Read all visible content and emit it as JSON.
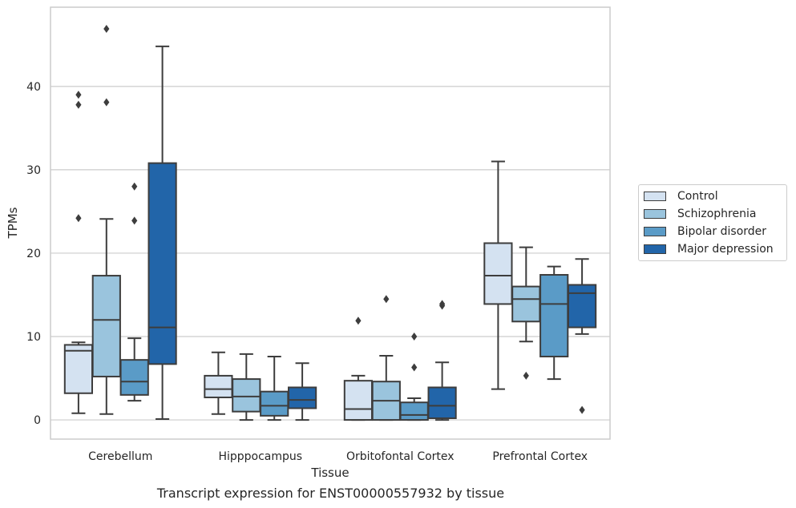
{
  "chart_data": {
    "type": "boxplot",
    "caption": "Transcript expression for ENST00000557932 by tissue",
    "xlabel": "Tissue",
    "ylabel": "TPMs",
    "ylim": [
      -2.3,
      49.5
    ],
    "yticks": [
      0,
      10,
      20,
      30,
      40
    ],
    "grid": "horizontal",
    "legend_position": "right",
    "categories": [
      "Cerebellum",
      "Hipppocampus",
      "Orbitofontal Cortex",
      "Prefrontal Cortex"
    ],
    "series": [
      {
        "name": "Control",
        "color": "#d4e2f1",
        "boxes": [
          {
            "whislo": 0.8,
            "q1": 3.2,
            "med": 8.3,
            "q3": 9.0,
            "whishi": 9.3,
            "fliers": [
              24.2,
              37.8,
              39.0
            ]
          },
          {
            "whislo": 0.7,
            "q1": 2.7,
            "med": 3.7,
            "q3": 5.3,
            "whishi": 8.1,
            "fliers": []
          },
          {
            "whislo": 0.0,
            "q1": 0.0,
            "med": 1.3,
            "q3": 4.7,
            "whishi": 5.3,
            "fliers": [
              11.9
            ]
          },
          {
            "whislo": 3.7,
            "q1": 13.9,
            "med": 17.3,
            "q3": 21.2,
            "whishi": 31.0,
            "fliers": []
          }
        ]
      },
      {
        "name": "Schizophrenia",
        "color": "#9ac4dd",
        "boxes": [
          {
            "whislo": 0.7,
            "q1": 5.2,
            "med": 12.0,
            "q3": 17.3,
            "whishi": 24.1,
            "fliers": [
              38.1,
              46.9
            ]
          },
          {
            "whislo": 0.0,
            "q1": 1.0,
            "med": 2.8,
            "q3": 4.9,
            "whishi": 7.9,
            "fliers": []
          },
          {
            "whislo": 0.0,
            "q1": 0.0,
            "med": 2.3,
            "q3": 4.6,
            "whishi": 7.7,
            "fliers": [
              14.5
            ]
          },
          {
            "whislo": 9.4,
            "q1": 11.8,
            "med": 14.5,
            "q3": 16.0,
            "whishi": 20.7,
            "fliers": [
              5.3
            ]
          }
        ]
      },
      {
        "name": "Bipolar disorder",
        "color": "#5a9bc7",
        "boxes": [
          {
            "whislo": 2.3,
            "q1": 3.0,
            "med": 4.6,
            "q3": 7.2,
            "whishi": 9.8,
            "fliers": [
              23.9,
              28.0
            ]
          },
          {
            "whislo": 0.0,
            "q1": 0.5,
            "med": 1.7,
            "q3": 3.4,
            "whishi": 7.6,
            "fliers": []
          },
          {
            "whislo": 0.0,
            "q1": 0.0,
            "med": 0.6,
            "q3": 2.1,
            "whishi": 2.6,
            "fliers": [
              6.3,
              10.0
            ]
          },
          {
            "whislo": 4.9,
            "q1": 7.6,
            "med": 13.9,
            "q3": 17.4,
            "whishi": 18.4,
            "fliers": []
          }
        ]
      },
      {
        "name": "Major depression",
        "color": "#2265a9",
        "boxes": [
          {
            "whislo": 0.1,
            "q1": 6.7,
            "med": 11.1,
            "q3": 30.8,
            "whishi": 44.8,
            "fliers": []
          },
          {
            "whislo": 0.0,
            "q1": 1.4,
            "med": 2.4,
            "q3": 3.9,
            "whishi": 6.8,
            "fliers": []
          },
          {
            "whislo": 0.0,
            "q1": 0.2,
            "med": 1.7,
            "q3": 3.9,
            "whishi": 6.9,
            "fliers": [
              13.7,
              13.9
            ]
          },
          {
            "whislo": 10.3,
            "q1": 11.1,
            "med": 15.2,
            "q3": 16.2,
            "whishi": 19.3,
            "fliers": [
              1.2
            ]
          }
        ]
      }
    ]
  }
}
